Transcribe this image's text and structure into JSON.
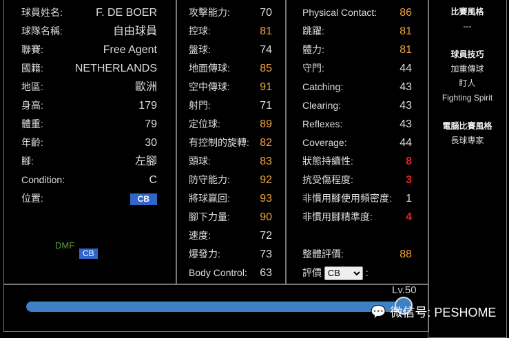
{
  "profile": [
    {
      "label": "球員姓名:",
      "value": "F. DE BOER"
    },
    {
      "label": "球隊名稱:",
      "value": "自由球員"
    },
    {
      "label": "聯賽:",
      "value": "Free Agent"
    },
    {
      "label": "國籍:",
      "value": "NETHERLANDS"
    },
    {
      "label": "地區:",
      "value": "歐洲"
    },
    {
      "label": "身高:",
      "value": "179"
    },
    {
      "label": "體重:",
      "value": "79"
    },
    {
      "label": "年齡:",
      "value": "30"
    },
    {
      "label": "腳:",
      "value": "左腳"
    },
    {
      "label": "Condition:",
      "value": "C"
    }
  ],
  "position": {
    "label": "位置:",
    "value": "CB",
    "map_secondary": "DMF",
    "map_primary": "CB"
  },
  "stats1": [
    {
      "label": "攻擊能力:",
      "value": "70",
      "c": ""
    },
    {
      "label": "控球:",
      "value": "81",
      "c": "o"
    },
    {
      "label": "盤球:",
      "value": "74",
      "c": ""
    },
    {
      "label": "地面傳球:",
      "value": "85",
      "c": "o"
    },
    {
      "label": "空中傳球:",
      "value": "91",
      "c": "o"
    },
    {
      "label": "射門:",
      "value": "71",
      "c": ""
    },
    {
      "label": "定位球:",
      "value": "89",
      "c": "o"
    },
    {
      "label": "有控制的旋轉:",
      "value": "82",
      "c": "o"
    },
    {
      "label": "頭球:",
      "value": "83",
      "c": "o"
    },
    {
      "label": "防守能力:",
      "value": "92",
      "c": "o"
    },
    {
      "label": "將球贏回:",
      "value": "93",
      "c": "o"
    },
    {
      "label": "腳下力量:",
      "value": "90",
      "c": "o"
    },
    {
      "label": "速度:",
      "value": "72",
      "c": ""
    },
    {
      "label": "爆發力:",
      "value": "73",
      "c": ""
    },
    {
      "label": "Body Control:",
      "value": "63",
      "c": ""
    }
  ],
  "stats2": [
    {
      "label": "Physical Contact:",
      "value": "86",
      "c": "o"
    },
    {
      "label": "跳躍:",
      "value": "81",
      "c": "o"
    },
    {
      "label": "體力:",
      "value": "81",
      "c": "o"
    },
    {
      "label": "守門:",
      "value": "44",
      "c": ""
    },
    {
      "label": "Catching:",
      "value": "43",
      "c": ""
    },
    {
      "label": "Clearing:",
      "value": "43",
      "c": ""
    },
    {
      "label": "Reflexes:",
      "value": "43",
      "c": ""
    },
    {
      "label": "Coverage:",
      "value": "44",
      "c": ""
    },
    {
      "label": "狀態持續性:",
      "value": "8",
      "c": "r"
    },
    {
      "label": "抗受傷程度:",
      "value": "3",
      "c": "r"
    },
    {
      "label": "非慣用腳使用頻密度:",
      "value": "1",
      "c": ""
    },
    {
      "label": "非慣用腳精準度:",
      "value": "4",
      "c": "r"
    }
  ],
  "overall": {
    "label": "整體評價:",
    "value": "88"
  },
  "rating": {
    "label": "評價",
    "selected": "CB",
    "suffix": ":"
  },
  "side": {
    "style_title": "比賽風格",
    "style_value": "---",
    "skills_title": "球員技巧",
    "skills": [
      "加重傳球",
      "盯人",
      "Fighting Spirit"
    ],
    "ai_title": "電腦比賽風格",
    "ai_value": "長球專家"
  },
  "level": {
    "label": "Lv.50",
    "value": 50,
    "max": 50
  },
  "watermark": "微信号: PESHOME",
  "colors": {
    "orange": "#f0a23c",
    "red": "#e82020",
    "badge": "#2f66c8",
    "slider": "#3f7fc4"
  }
}
